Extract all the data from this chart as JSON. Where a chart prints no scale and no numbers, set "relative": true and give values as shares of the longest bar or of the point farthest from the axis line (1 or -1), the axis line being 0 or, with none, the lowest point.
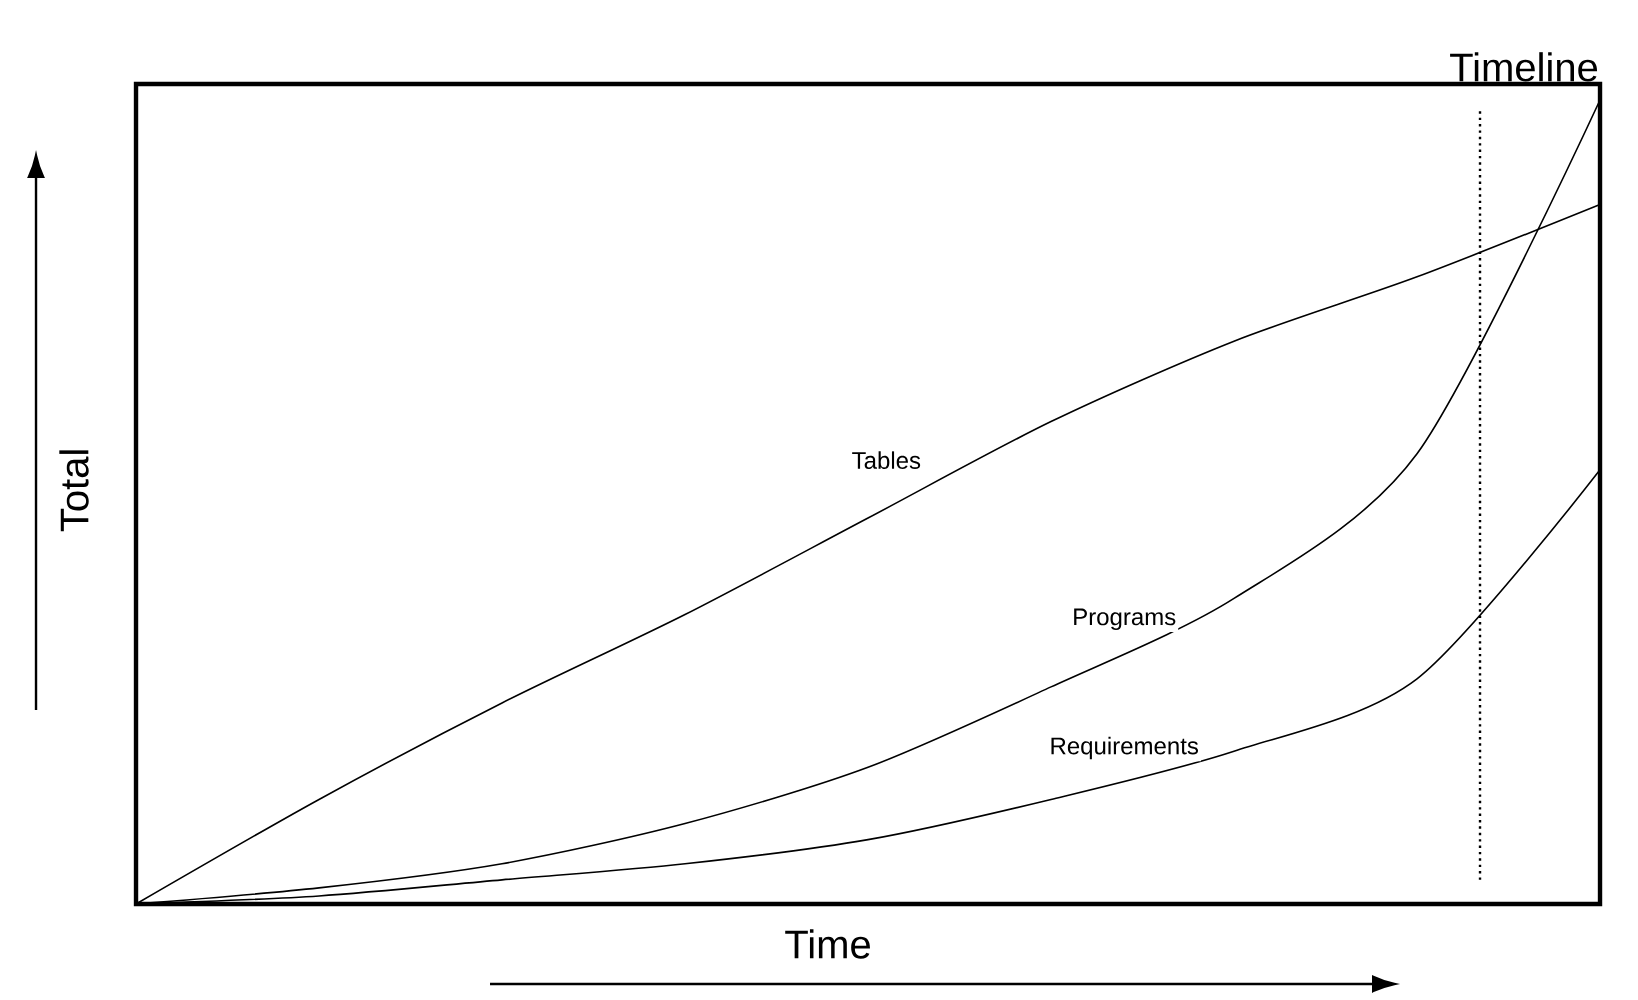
{
  "chart_data": {
    "type": "line",
    "relative": true,
    "xlabel": "Time",
    "ylabel": "Total",
    "categories": [
      null,
      null,
      null,
      null,
      null,
      null,
      null,
      null,
      null
    ],
    "series": [
      {
        "name": "Tables",
        "color": "#000000",
        "values": [
          0,
          0.13,
          0.25,
          0.36,
          0.48,
          0.6,
          0.7,
          0.78,
          0.87
        ]
      },
      {
        "name": "Programs",
        "color": "#000000",
        "values": [
          0,
          0.02,
          0.05,
          0.1,
          0.17,
          0.27,
          0.38,
          0.56,
          1
        ]
      },
      {
        "name": "Requirements",
        "color": "#000000",
        "values": [
          0,
          0.01,
          0.03,
          0.05,
          0.08,
          0.13,
          0.19,
          0.28,
          0.54
        ]
      }
    ],
    "annotations": [
      "Timeline"
    ],
    "legend": false
  }
}
